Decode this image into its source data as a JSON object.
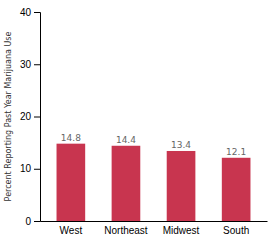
{
  "chart_data": {
    "type": "bar",
    "categories": [
      "West",
      "Northeast",
      "Midwest",
      "South"
    ],
    "values": [
      14.8,
      14.4,
      13.4,
      12.1
    ],
    "color": "#c8354f",
    "ylabel": "Percent Reporting Past Year Marijuana Use",
    "ylim": [
      0,
      40
    ],
    "yticks": [
      0,
      10,
      20,
      30,
      40
    ],
    "grid": false,
    "data_labels": true
  }
}
